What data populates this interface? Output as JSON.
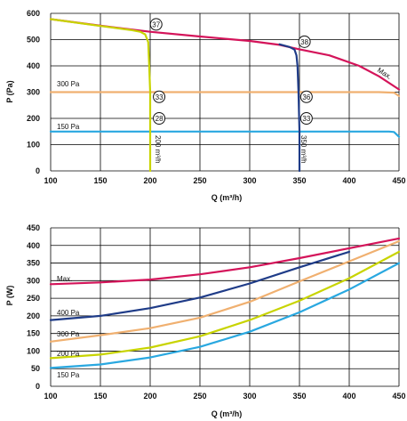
{
  "chart_data": [
    {
      "type": "line",
      "xlabel": "Q (m³/h)",
      "ylabel": "P (Pa)",
      "xlim": [
        100,
        450
      ],
      "ylim": [
        0,
        600
      ],
      "x_ticks": [
        100,
        150,
        200,
        250,
        300,
        350,
        400,
        450
      ],
      "y_ticks": [
        0,
        100,
        200,
        300,
        400,
        500,
        600
      ],
      "grid": true,
      "series": [
        {
          "name": "Max.",
          "color": "#d4145a",
          "points": [
            [
              100,
              578
            ],
            [
              150,
              553
            ],
            [
              200,
              530
            ],
            [
              250,
              512
            ],
            [
              300,
              495
            ],
            [
              330,
              480
            ],
            [
              350,
              463
            ],
            [
              380,
              440
            ],
            [
              410,
              400
            ],
            [
              430,
              360
            ],
            [
              450,
              310
            ]
          ]
        },
        {
          "name": "300 Pa",
          "color": "#f0b070",
          "points": [
            [
              100,
              300
            ],
            [
              430,
              300
            ],
            [
              445,
              298
            ],
            [
              450,
              285
            ]
          ]
        },
        {
          "name": "150 Pa",
          "color": "#29a8e0",
          "points": [
            [
              100,
              150
            ],
            [
              440,
              150
            ],
            [
              445,
              148
            ],
            [
              450,
              130
            ]
          ]
        },
        {
          "name": "200 m³/h",
          "color": "#c8d400",
          "points": [
            [
              100,
              578
            ],
            [
              150,
              552
            ],
            [
              180,
              537
            ],
            [
              190,
              530
            ],
            [
              195,
              520
            ],
            [
              198,
              490
            ],
            [
              199,
              400
            ],
            [
              200,
              300
            ],
            [
              200,
              0
            ]
          ]
        },
        {
          "name": "350 m³/h",
          "color": "#1f3c88",
          "points": [
            [
              330,
              482
            ],
            [
              340,
              472
            ],
            [
              345,
              462
            ],
            [
              347,
              440
            ],
            [
              348,
              400
            ],
            [
              349,
              300
            ],
            [
              350,
              150
            ],
            [
              350,
              0
            ]
          ]
        }
      ],
      "annotations": [
        {
          "text": "37",
          "x": 206,
          "y": 558
        },
        {
          "text": "38",
          "x": 355,
          "y": 492
        },
        {
          "text": "33",
          "x": 209,
          "y": 282
        },
        {
          "text": "36",
          "x": 357,
          "y": 282
        },
        {
          "text": "28",
          "x": 209,
          "y": 200
        },
        {
          "text": "33",
          "x": 357,
          "y": 200
        }
      ],
      "labels": {
        "max": "Max.",
        "p300": "300 Pa",
        "p150": "150 Pa",
        "q200": "200 m³/h",
        "q350": "350 m³/h"
      }
    },
    {
      "type": "line",
      "xlabel": "Q (m³/h)",
      "ylabel": "P (W)",
      "xlim": [
        100,
        450
      ],
      "ylim": [
        0,
        450
      ],
      "x_ticks": [
        100,
        150,
        200,
        250,
        300,
        350,
        400,
        450
      ],
      "y_ticks": [
        0,
        50,
        100,
        150,
        200,
        250,
        300,
        350,
        400,
        450
      ],
      "grid": true,
      "series": [
        {
          "name": "Max.",
          "color": "#d4145a",
          "points": [
            [
              100,
              290
            ],
            [
              150,
              295
            ],
            [
              200,
              303
            ],
            [
              250,
              318
            ],
            [
              300,
              338
            ],
            [
              350,
              364
            ],
            [
              400,
              392
            ],
            [
              450,
              420
            ]
          ]
        },
        {
          "name": "400 Pa",
          "color": "#1f3c88",
          "points": [
            [
              100,
              188
            ],
            [
              150,
              200
            ],
            [
              200,
              222
            ],
            [
              250,
              252
            ],
            [
              300,
              292
            ],
            [
              350,
              338
            ],
            [
              400,
              382
            ]
          ]
        },
        {
          "name": "300 Pa",
          "color": "#f0b070",
          "points": [
            [
              100,
              127
            ],
            [
              150,
              145
            ],
            [
              200,
              165
            ],
            [
              250,
              195
            ],
            [
              300,
              240
            ],
            [
              350,
              298
            ],
            [
              400,
              355
            ],
            [
              450,
              412
            ]
          ]
        },
        {
          "name": "200 Pa",
          "color": "#c8d400",
          "points": [
            [
              100,
              80
            ],
            [
              150,
              90
            ],
            [
              200,
              110
            ],
            [
              250,
              142
            ],
            [
              300,
              188
            ],
            [
              350,
              243
            ],
            [
              400,
              307
            ],
            [
              450,
              382
            ]
          ]
        },
        {
          "name": "150 Pa",
          "color": "#29a8e0",
          "points": [
            [
              100,
              52
            ],
            [
              150,
              62
            ],
            [
              200,
              82
            ],
            [
              250,
              112
            ],
            [
              300,
              155
            ],
            [
              350,
              210
            ],
            [
              400,
              275
            ],
            [
              450,
              350
            ]
          ]
        }
      ],
      "labels": {
        "max": "Max.",
        "p400": "400 Pa",
        "p300": "300 Pa",
        "p200": "200 Pa",
        "p150": "150 Pa"
      }
    }
  ]
}
